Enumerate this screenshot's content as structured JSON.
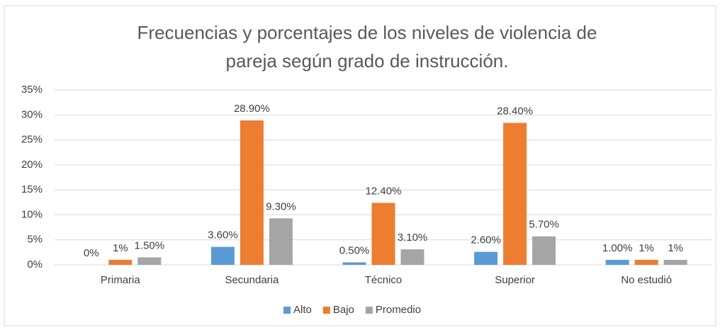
{
  "chart_data": {
    "type": "bar",
    "title": [
      "Frecuencias y porcentajes de los niveles de violencia de",
      "pareja según grado de instrucción."
    ],
    "categories": [
      "Primaria",
      "Secundaria",
      "Técnico",
      "Superior",
      "No estudió"
    ],
    "series": [
      {
        "name": "Alto",
        "color": "#5b9bd5",
        "values": [
          0,
          3.6,
          0.5,
          2.6,
          1.0
        ],
        "value_labels": [
          "0%",
          "3.60%",
          "0.50%",
          "2.60%",
          "1.00%"
        ]
      },
      {
        "name": "Bajo",
        "color": "#ed7d31",
        "values": [
          1,
          28.9,
          12.4,
          28.4,
          1
        ],
        "value_labels": [
          "1%",
          "28.90%",
          "12.40%",
          "28.40%",
          "1%"
        ]
      },
      {
        "name": "Promedio",
        "color": "#a5a5a5",
        "values": [
          1.5,
          9.3,
          3.1,
          5.7,
          1
        ],
        "value_labels": [
          "1.50%",
          "9.30%",
          "3.10%",
          "5.70%",
          "1%"
        ]
      }
    ],
    "ylim": [
      0,
      35
    ],
    "yticks": [
      {
        "value": 0,
        "label": "0%"
      },
      {
        "value": 5,
        "label": "5%"
      },
      {
        "value": 10,
        "label": "10%"
      },
      {
        "value": 15,
        "label": "15%"
      },
      {
        "value": 20,
        "label": "20%"
      },
      {
        "value": 25,
        "label": "25%"
      },
      {
        "value": 30,
        "label": "30%"
      },
      {
        "value": 35,
        "label": "35%"
      }
    ],
    "grid": true,
    "legend": "bottom"
  }
}
